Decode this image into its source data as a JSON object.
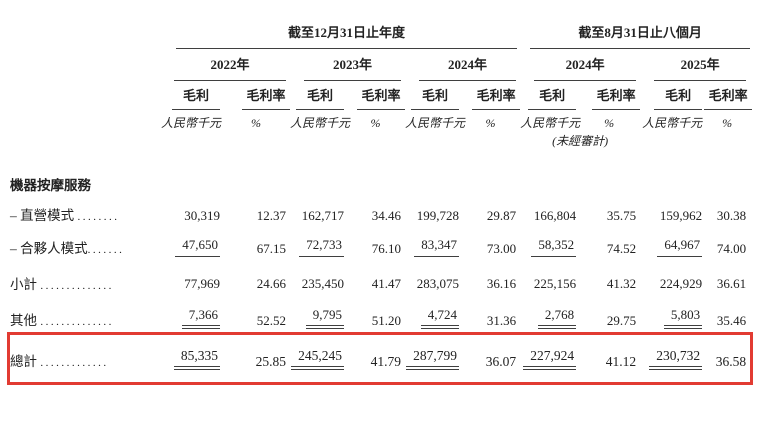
{
  "page": {
    "background_color": "#ffffff",
    "text_color": "#222222",
    "rule_color": "#3f3f3f",
    "highlight_box_color": "#e23b32"
  },
  "table": {
    "periods": [
      {
        "title": "截至12月31日止年度"
      },
      {
        "title": "截至8月31日止八個月"
      }
    ],
    "years": [
      "2022年",
      "2023年",
      "2024年",
      "2024年",
      "2025年"
    ],
    "labels": {
      "gross_profit": "毛利",
      "gross_margin": "毛利率",
      "unit_rmb": "人民幣千元",
      "unit_pct": "%",
      "unaudited": "(未經審計)"
    },
    "section_header": "機器按摩服務",
    "rows": [
      {
        "label": "– 直營模式",
        "dots": "........",
        "values": [
          "30,319",
          "12.37",
          "162,717",
          "34.46",
          "199,728",
          "29.87",
          "166,804",
          "35.75",
          "159,962",
          "30.38"
        ]
      },
      {
        "label": "– 合夥人模式",
        "dots": ".......",
        "values": [
          "47,650",
          "67.15",
          "72,733",
          "76.10",
          "83,347",
          "73.00",
          "58,352",
          "74.52",
          "64,967",
          "74.00"
        ]
      },
      {
        "label": "小計",
        "dots": "..............",
        "values": [
          "77,969",
          "24.66",
          "235,450",
          "41.47",
          "283,075",
          "36.16",
          "225,156",
          "41.32",
          "224,929",
          "36.61"
        ]
      },
      {
        "label": "其他",
        "dots": "..............",
        "values": [
          "7,366",
          "52.52",
          "9,795",
          "51.20",
          "4,724",
          "31.36",
          "2,768",
          "29.75",
          "5,803",
          "35.46"
        ]
      },
      {
        "label": "總計",
        "dots": ".............",
        "values": [
          "85,335",
          "25.85",
          "245,245",
          "41.79",
          "287,799",
          "36.07",
          "227,924",
          "41.12",
          "230,732",
          "36.58"
        ]
      }
    ]
  }
}
